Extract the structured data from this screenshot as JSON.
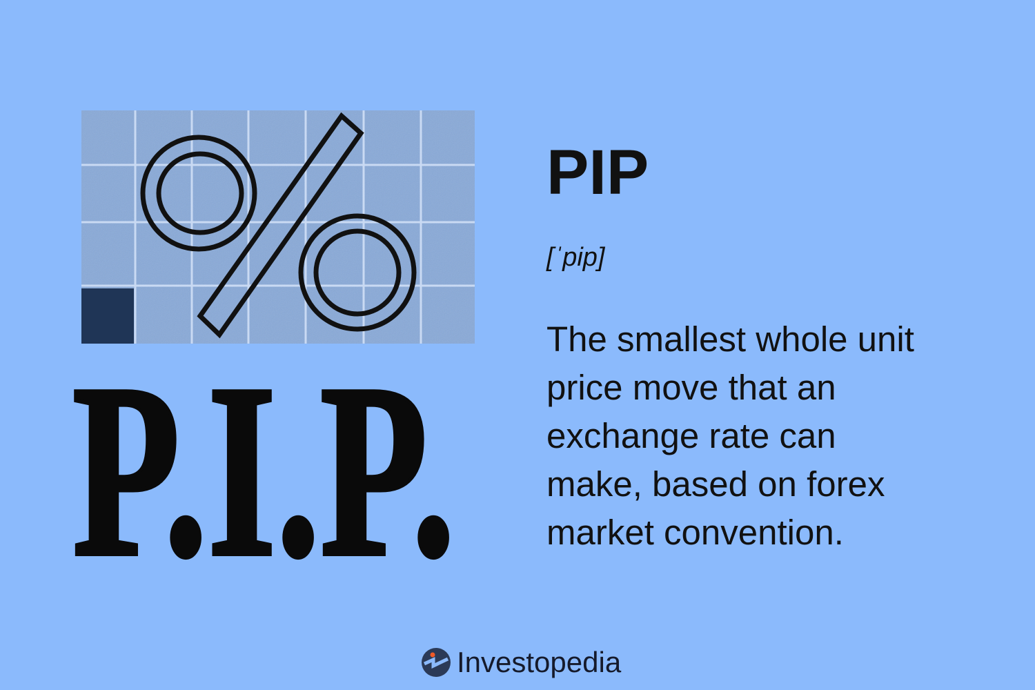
{
  "term": "PIP",
  "pronunciation": "[ˈpip]",
  "definition": "The smallest whole unit price move that an exchange rate can make, based on forex market convention.",
  "illustration": {
    "symbol": "%",
    "lettering": "P.I.P.",
    "colors": {
      "background": "#8bbafc",
      "grid_fill": "#88a9d8",
      "accent_square": "#1f3556",
      "ink": "#111111"
    }
  },
  "brand": {
    "name": "Investopedia",
    "icon": "investopedia-logo-icon",
    "icon_color": "#2b3a57",
    "dot_color": "#f05a28"
  }
}
